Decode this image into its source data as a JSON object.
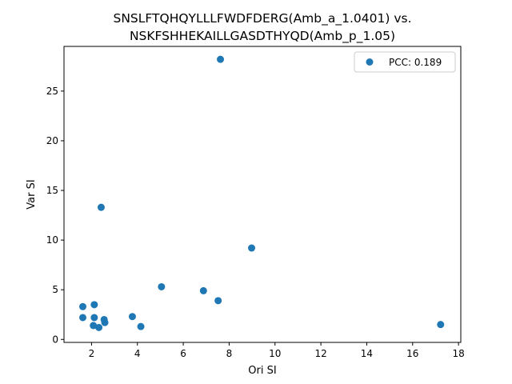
{
  "chart_data": {
    "type": "scatter",
    "title_lines": [
      "SNSLFTQHQYLLLFWDFDERG(Amb_a_1.0401) vs.",
      "NSKFSHHEKAILLGASDTHYQD(Amb_p_1.05)"
    ],
    "xlabel": "Ori SI",
    "ylabel": "Var SI",
    "xlim": [
      0.8,
      18.1
    ],
    "ylim": [
      -0.3,
      29.5
    ],
    "xticks": [
      2,
      4,
      6,
      8,
      10,
      12,
      14,
      16,
      18
    ],
    "yticks": [
      0,
      5,
      10,
      15,
      20,
      25
    ],
    "grid": false,
    "legend_position": "top-right",
    "series": [
      {
        "name": "PCC: 0.189",
        "color": "#1f77b4",
        "marker": "circle",
        "points": [
          {
            "x": 7.62,
            "y": 28.2
          },
          {
            "x": 2.42,
            "y": 13.3
          },
          {
            "x": 8.98,
            "y": 9.2
          },
          {
            "x": 5.05,
            "y": 5.3
          },
          {
            "x": 6.88,
            "y": 4.9
          },
          {
            "x": 7.52,
            "y": 3.9
          },
          {
            "x": 2.12,
            "y": 3.5
          },
          {
            "x": 1.62,
            "y": 3.3
          },
          {
            "x": 3.78,
            "y": 2.3
          },
          {
            "x": 1.62,
            "y": 2.2
          },
          {
            "x": 2.12,
            "y": 2.2
          },
          {
            "x": 2.55,
            "y": 2.0
          },
          {
            "x": 2.58,
            "y": 1.7
          },
          {
            "x": 2.08,
            "y": 1.4
          },
          {
            "x": 2.32,
            "y": 1.2
          },
          {
            "x": 4.15,
            "y": 1.3
          },
          {
            "x": 17.22,
            "y": 1.5
          }
        ]
      }
    ]
  }
}
